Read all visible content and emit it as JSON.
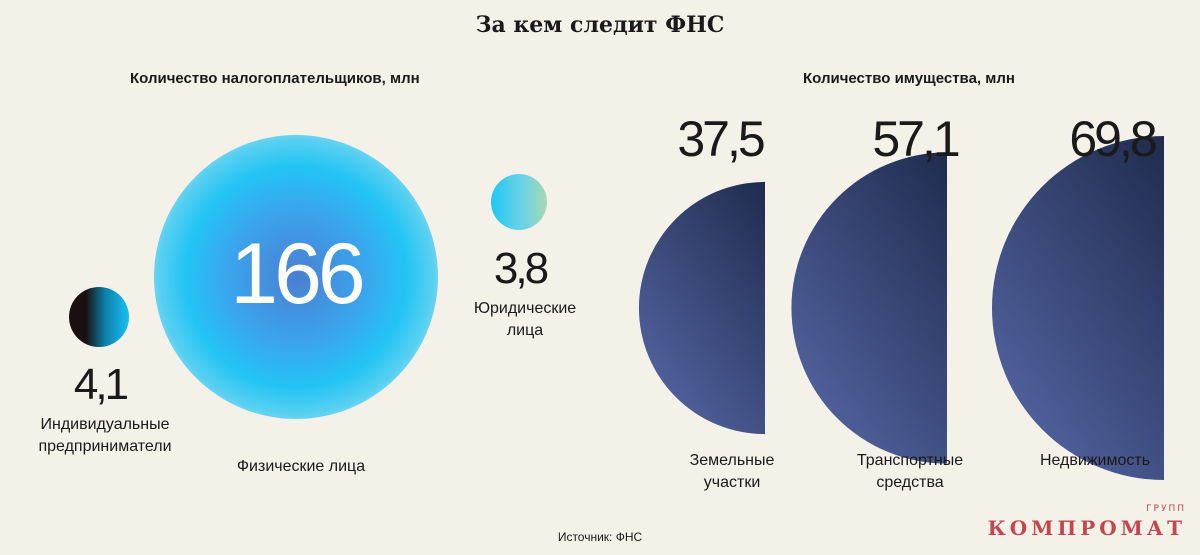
{
  "title": "За кем следит ФНС",
  "source": "Источник: ФНС",
  "logo": {
    "main": "КОМПРОМАТ",
    "small": "ГРУПП"
  },
  "colors": {
    "background": "#f4f1e9",
    "taxpayers_glow": "#22c4f4",
    "property_fill_dark": "#24355d",
    "property_fill_light": "#4f5f9c",
    "logo": "#c4474f"
  },
  "chart_data": [
    {
      "type": "bubble",
      "title": "Количество налогоплательщиков, млн",
      "categories": [
        "Индивидуальные предприниматели",
        "Физические лица",
        "Юридические лица"
      ],
      "values": [
        4.1,
        166,
        3.8
      ],
      "value_labels": [
        "4,1",
        "166",
        "3,8"
      ],
      "label_lines": [
        [
          "Индивидуальные",
          "предприниматели"
        ],
        [
          "Физические лица"
        ],
        [
          "Юридические",
          "лица"
        ]
      ]
    },
    {
      "type": "half-circle",
      "title": "Количество имущества, млн",
      "categories": [
        "Земельные участки",
        "Транспортные средства",
        "Недвижимость"
      ],
      "values": [
        37.5,
        57.1,
        69.8
      ],
      "value_labels": [
        "37,5",
        "57,1",
        "69,8"
      ],
      "label_lines": [
        [
          "Земельные",
          "участки"
        ],
        [
          "Транспортные",
          "средства"
        ],
        [
          "Недвижимость"
        ]
      ]
    }
  ]
}
